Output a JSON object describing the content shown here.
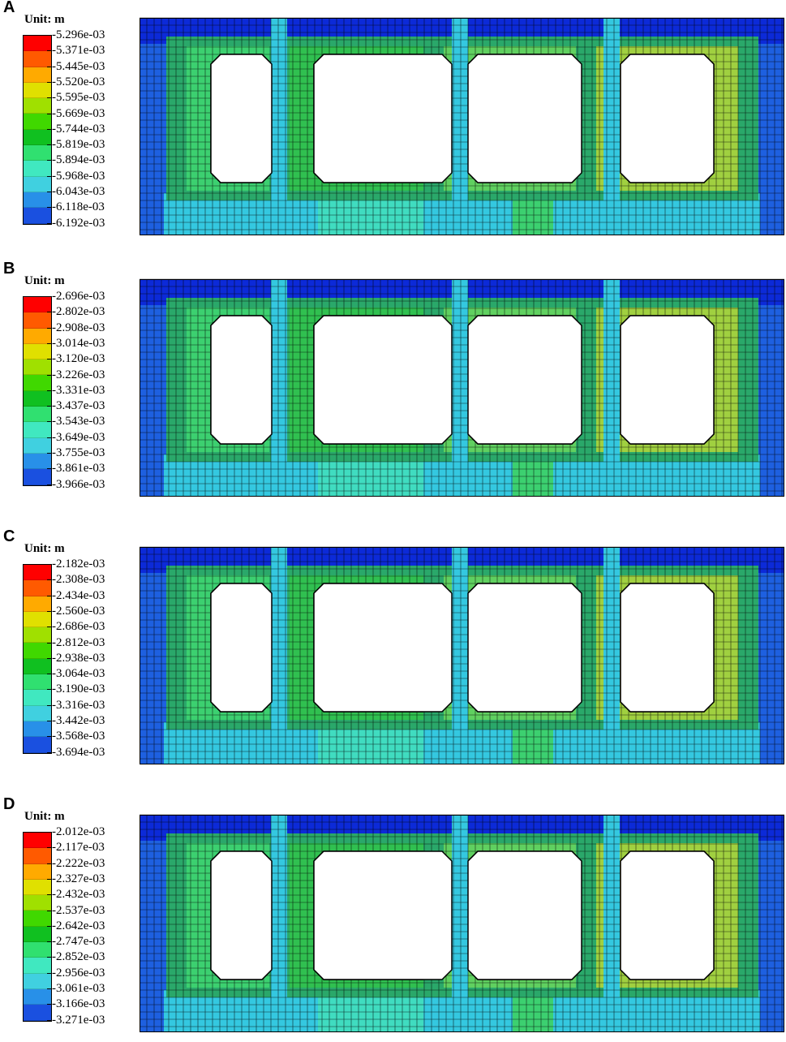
{
  "unit_label": "Unit: m",
  "colors": {
    "scale": [
      "#ff0000",
      "#ff5a00",
      "#ffaa00",
      "#e0e000",
      "#a0e000",
      "#40d800",
      "#10c020",
      "#30e070",
      "#40e8c0",
      "#40d0e0",
      "#2890e8",
      "#1a50e0",
      "#0a10e8"
    ],
    "deep_blue": "#0c2ad8",
    "blue": "#1e60e0",
    "cyan": "#34c8e0",
    "teal": "#40dcc0",
    "green": "#3cd070",
    "mesh": "#000000"
  },
  "panels": [
    {
      "letter": "A",
      "legend": [
        "-5.296e-03",
        "-5.371e-03",
        "-5.445e-03",
        "-5.520e-03",
        "-5.595e-03",
        "-5.669e-03",
        "-5.744e-03",
        "-5.819e-03",
        "-5.894e-03",
        "-5.968e-03",
        "-6.043e-03",
        "-6.118e-03",
        "-6.192e-03"
      ]
    },
    {
      "letter": "B",
      "legend": [
        "-2.696e-03",
        "-2.802e-03",
        "-2.908e-03",
        "-3.014e-03",
        "-3.120e-03",
        "-3.226e-03",
        "-3.331e-03",
        "-3.437e-03",
        "-3.543e-03",
        "-3.649e-03",
        "-3.755e-03",
        "-3.861e-03",
        "-3.966e-03"
      ]
    },
    {
      "letter": "C",
      "legend": [
        "-2.182e-03",
        "-2.308e-03",
        "-2.434e-03",
        "-2.560e-03",
        "-2.686e-03",
        "-2.812e-03",
        "-2.938e-03",
        "-3.064e-03",
        "-3.190e-03",
        "-3.316e-03",
        "-3.442e-03",
        "-3.568e-03",
        "-3.694e-03"
      ]
    },
    {
      "letter": "D",
      "legend": [
        "-2.012e-03",
        "-2.117e-03",
        "-2.222e-03",
        "-2.327e-03",
        "-2.432e-03",
        "-2.537e-03",
        "-2.642e-03",
        "-2.747e-03",
        "-2.852e-03",
        "-2.956e-03",
        "-3.061e-03",
        "-3.166e-03",
        "-3.271e-03"
      ]
    }
  ]
}
